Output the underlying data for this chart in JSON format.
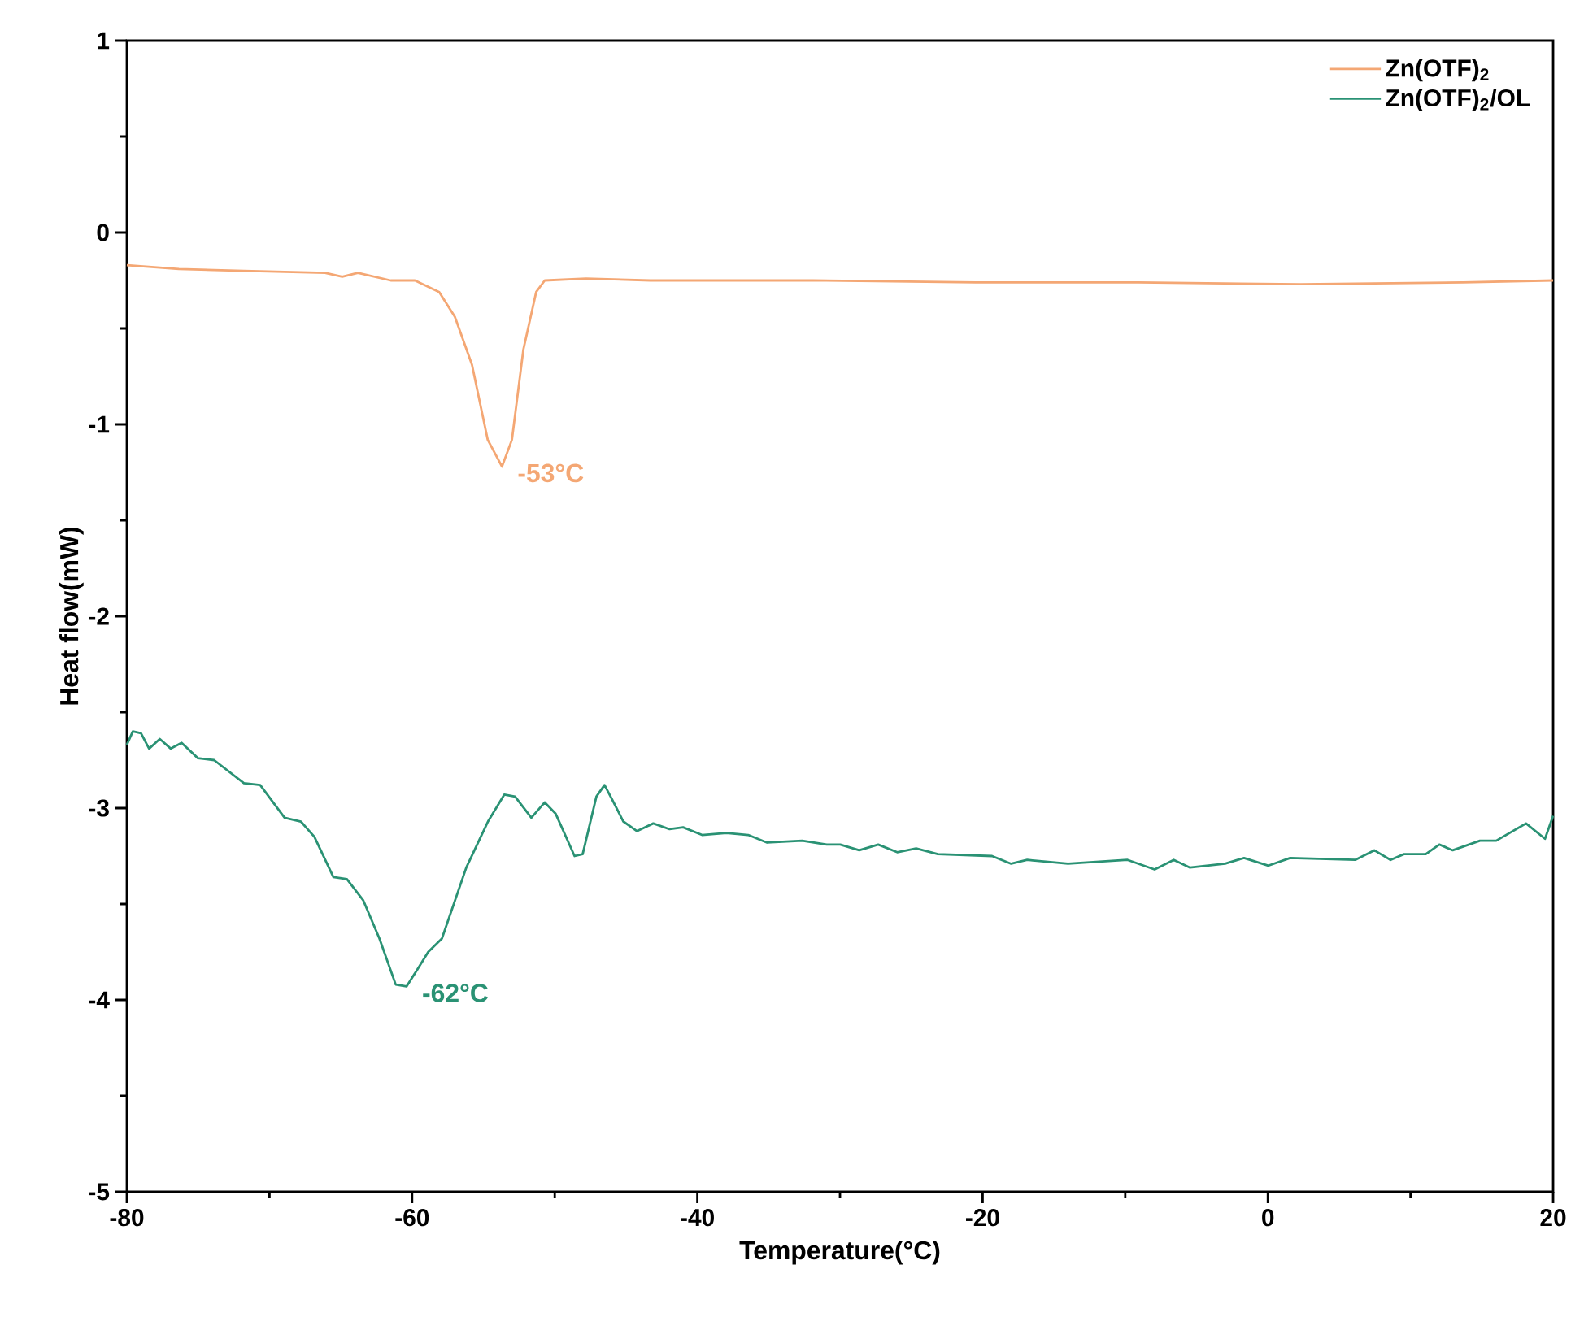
{
  "chart_data": {
    "type": "line",
    "xlabel": "Temperature(°C)",
    "ylabel": "Heat flow(mW)",
    "xlim": [
      -80,
      20
    ],
    "ylim": [
      -5,
      1
    ],
    "xticks": [
      -80,
      -60,
      -40,
      -20,
      0,
      20
    ],
    "yticks": [
      -5,
      -4,
      -3,
      -2,
      -1,
      0,
      1
    ],
    "legend": "top right",
    "series": [
      {
        "name": "Zn(OTF)$_{2}$",
        "color": "#f4a774",
        "x": [
          -80,
          -76.35,
          -71.8,
          -66.1,
          -64.9,
          -63.8,
          -61.5,
          -59.8,
          -58.1,
          -57.0,
          -55.8,
          -54.7,
          -53.7,
          -53.0,
          -52.2,
          -51.3,
          -50.7,
          -47.8,
          -43.3,
          -31.9,
          -20.5,
          -9.1,
          2.3,
          13.7,
          20
        ],
        "values": [
          -0.17,
          -0.19,
          -0.2,
          -0.21,
          -0.23,
          -0.21,
          -0.25,
          -0.25,
          -0.31,
          -0.44,
          -0.69,
          -1.08,
          -1.22,
          -1.08,
          -0.61,
          -0.31,
          -0.25,
          -0.24,
          -0.25,
          -0.25,
          -0.26,
          -0.26,
          -0.27,
          -0.26,
          -0.25
        ]
      },
      {
        "name": "Zn(OTF)$_{2}$/OL",
        "color": "#2a9274",
        "x": [
          -80,
          -79.58,
          -79.01,
          -78.44,
          -77.69,
          -76.92,
          -76.16,
          -75.02,
          -73.88,
          -71.79,
          -70.65,
          -68.94,
          -67.8,
          -66.85,
          -65.52,
          -64.57,
          -63.43,
          -62.29,
          -61.15,
          -60.39,
          -59.62,
          -58.87,
          -57.91,
          -56.2,
          -54.68,
          -53.54,
          -52.78,
          -51.64,
          -50.7,
          -49.93,
          -48.61,
          -48.04,
          -47.08,
          -46.51,
          -45.94,
          -45.19,
          -44.23,
          -43.09,
          -41.95,
          -41.0,
          -39.67,
          -37.96,
          -36.44,
          -35.11,
          -32.65,
          -30.93,
          -29.98,
          -28.65,
          -27.32,
          -25.99,
          -24.66,
          -23.14,
          -19.34,
          -18.0,
          -16.87,
          -14.01,
          -9.84,
          -7.94,
          -6.6,
          -5.46,
          -3.0,
          -1.67,
          0.04,
          1.56,
          6.12,
          7.46,
          8.6,
          9.54,
          11.07,
          12.02,
          12.96,
          14.87,
          16.01,
          18.1,
          19.43,
          20
        ],
        "values": [
          -2.67,
          -2.6,
          -2.61,
          -2.69,
          -2.64,
          -2.69,
          -2.66,
          -2.74,
          -2.75,
          -2.87,
          -2.88,
          -3.05,
          -3.07,
          -3.15,
          -3.36,
          -3.37,
          -3.48,
          -3.68,
          -3.92,
          -3.93,
          -3.84,
          -3.75,
          -3.68,
          -3.31,
          -3.07,
          -2.93,
          -2.94,
          -3.05,
          -2.97,
          -3.03,
          -3.25,
          -3.24,
          -2.94,
          -2.88,
          -2.96,
          -3.07,
          -3.12,
          -3.08,
          -3.11,
          -3.1,
          -3.14,
          -3.13,
          -3.14,
          -3.18,
          -3.17,
          -3.19,
          -3.19,
          -3.22,
          -3.19,
          -3.23,
          -3.21,
          -3.24,
          -3.25,
          -3.29,
          -3.27,
          -3.29,
          -3.27,
          -3.32,
          -3.27,
          -3.31,
          -3.29,
          -3.26,
          -3.3,
          -3.26,
          -3.27,
          -3.22,
          -3.27,
          -3.24,
          -3.24,
          -3.19,
          -3.22,
          -3.17,
          -3.17,
          -3.08,
          -3.16,
          -3.04
        ]
      }
    ],
    "annotations": [
      {
        "text": "-53°C",
        "x": -53.7,
        "y": -1.22
      },
      {
        "text": "-62°C",
        "x": -60.39,
        "y": -3.93
      }
    ]
  }
}
